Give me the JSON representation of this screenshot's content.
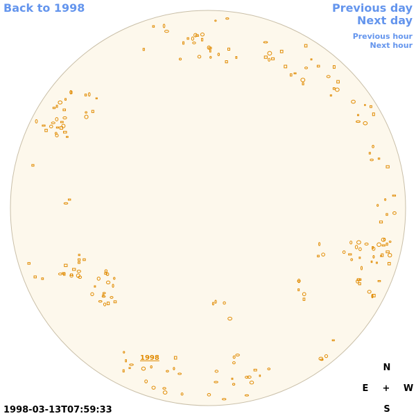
{
  "navigation": {
    "back": "Back to 1998",
    "previous_day": "Previous day",
    "next_day": "Next day",
    "previous_hour": "Previous hour",
    "next_hour": "Next hour"
  },
  "disk": {
    "label": "1998"
  },
  "timestamp": "1998-03-13T07:59:33",
  "compass": {
    "north": "N",
    "east": "E",
    "center": "+",
    "west": "W",
    "south": "S"
  }
}
